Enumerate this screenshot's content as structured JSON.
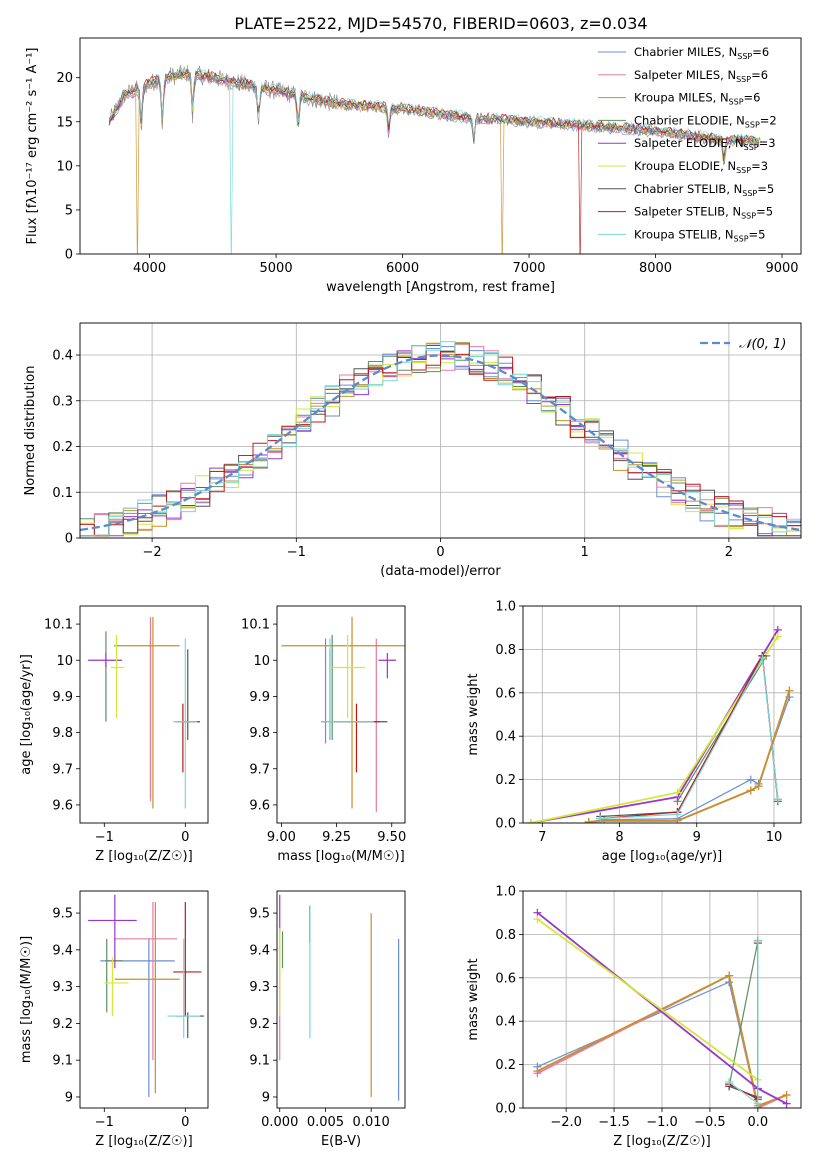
{
  "figure_title": "PLATE=2522, MJD=54570, FIBERID=0603, z=0.034",
  "series_styles": [
    {
      "name": "Chabrier MILES",
      "nssp": "6",
      "color": "#6a8fd6"
    },
    {
      "name": "Salpeter MILES",
      "nssp": "6",
      "color": "#e87ba6"
    },
    {
      "name": "Kroupa MILES",
      "nssp": "6",
      "color": "#c8902a"
    },
    {
      "name": "Chabrier ELODIE",
      "nssp": "2",
      "color": "#5e8f60"
    },
    {
      "name": "Salpeter ELODIE",
      "nssp": "3",
      "color": "#9a36c8"
    },
    {
      "name": "Kroupa ELODIE",
      "nssp": "3",
      "color": "#d4e838"
    },
    {
      "name": "Chabrier STELIB",
      "nssp": "5",
      "color": "#555555"
    },
    {
      "name": "Salpeter STELIB",
      "nssp": "5",
      "color": "#c01818"
    },
    {
      "name": "Kroupa STELIB",
      "nssp": "5",
      "color": "#78d8d8"
    }
  ],
  "legend_nssp_prefix": "N",
  "legend_nssp_sub": "SSP",
  "chart_data": [
    {
      "id": "spectrum",
      "type": "line",
      "title": "PLATE=2522, MJD=54570, FIBERID=0603, z=0.034",
      "xlabel": "wavelength [Angstrom, rest frame]",
      "ylabel": "Flux [fλ10⁻¹⁷ erg cm⁻² s⁻¹ A⁻¹]",
      "xlim": [
        3450,
        9150
      ],
      "ylim": [
        0,
        24.5
      ],
      "xticks": [
        4000,
        5000,
        6000,
        7000,
        8000,
        9000
      ],
      "yticks": [
        0,
        5,
        10,
        15,
        20
      ],
      "legend_position": "top-right",
      "continuum": {
        "x": [
          3680,
          3800,
          3950,
          4100,
          4300,
          4500,
          5000,
          5500,
          6000,
          6500,
          7000,
          7500,
          8000,
          8500,
          8830
        ],
        "y": [
          15,
          18,
          19,
          20,
          20.5,
          20,
          18.5,
          17,
          16.5,
          15.5,
          15,
          14.5,
          14,
          13,
          12.8
        ]
      },
      "absorption_features": [
        {
          "x": 3934,
          "depth": 5
        },
        {
          "x": 4101,
          "depth": 6
        },
        {
          "x": 4340,
          "depth": 5
        },
        {
          "x": 4861,
          "depth": 4
        },
        {
          "x": 5175,
          "depth": 4
        },
        {
          "x": 5890,
          "depth": 3
        },
        {
          "x": 6563,
          "depth": 3
        },
        {
          "x": 8542,
          "depth": 3
        }
      ],
      "model_dropouts": [
        {
          "series": "Kroupa MILES",
          "x": 3905
        },
        {
          "series": "Kroupa STELIB",
          "x": 4640
        },
        {
          "series": "Kroupa MILES",
          "x": 6785
        },
        {
          "series": "Salpeter STELIB",
          "x": 7410
        }
      ]
    },
    {
      "id": "residuals",
      "type": "line",
      "xlabel": "(data-model)/error",
      "ylabel": "Normed distribution",
      "xlim": [
        -2.5,
        2.5
      ],
      "ylim": [
        0,
        0.47
      ],
      "xticks": [
        -2,
        -1,
        0,
        1,
        2
      ],
      "yticks": [
        0.0,
        0.1,
        0.2,
        0.3,
        0.4
      ],
      "grid": true,
      "legend_position": "top-right",
      "reference_label": "𝒩(0, 1)",
      "reference_color": "#5a8ad0",
      "bin_width": 0.1
    },
    {
      "id": "age_vs_z",
      "type": "scatter",
      "xlabel": "Z [log₁₀(Z/Z☉)]",
      "ylabel": "age  [log₁₀(age/yr)]",
      "xlim": [
        -1.3,
        0.28
      ],
      "ylim": [
        9.55,
        10.15
      ],
      "xticks": [
        -1,
        0
      ],
      "yticks": [
        9.6,
        9.7,
        9.8,
        9.9,
        10.0,
        10.1
      ],
      "points": [
        {
          "series": "Chabrier MILES",
          "x": -0.43,
          "y": 9.84,
          "xerr": 0,
          "yerr": [
            0.22,
            0.22
          ]
        },
        {
          "series": "Salpeter MILES",
          "x": -0.43,
          "y": 10.04,
          "xerr": [
            0.02,
            0.02
          ],
          "yerr": [
            0.43,
            0.08
          ]
        },
        {
          "series": "Kroupa MILES",
          "x": -0.4,
          "y": 10.04,
          "xerr": [
            0.48,
            0.33
          ],
          "yerr": [
            0.45,
            0.08
          ]
        },
        {
          "series": "Chabrier ELODIE",
          "x": -0.98,
          "y": 9.95,
          "xerr": 0,
          "yerr": [
            0.12,
            0.13
          ]
        },
        {
          "series": "Salpeter ELODIE",
          "x": -0.98,
          "y": 10.0,
          "xerr": [
            0.22,
            0.2
          ],
          "yerr": [
            0.02,
            0.02
          ]
        },
        {
          "series": "Kroupa ELODIE",
          "x": -0.85,
          "y": 9.98,
          "xerr": [
            0.07,
            0.1
          ],
          "yerr": [
            0.14,
            0.09
          ]
        },
        {
          "series": "Chabrier STELIB",
          "x": 0.03,
          "y": 9.83,
          "xerr": [
            0.15,
            0.15
          ],
          "yerr": [
            0.05,
            0.2
          ]
        },
        {
          "series": "Salpeter STELIB",
          "x": -0.03,
          "y": 9.83,
          "xerr": [
            0.02,
            0.2
          ],
          "yerr": [
            0.14,
            0.05
          ]
        },
        {
          "series": "Kroupa STELIB",
          "x": 0.0,
          "y": 9.83,
          "xerr": [
            0.15,
            0.15
          ],
          "yerr": [
            0.24,
            0.23
          ]
        }
      ]
    },
    {
      "id": "age_vs_mass",
      "type": "scatter",
      "xlabel": "mass [log₁₀(M/M☉)]",
      "ylabel": "",
      "xlim": [
        8.98,
        9.56
      ],
      "ylim": [
        9.55,
        10.15
      ],
      "xticks": [
        9.0,
        9.25,
        9.5
      ],
      "xticklabels": [
        "9.00",
        "9.25",
        "9.50"
      ],
      "yticks": [
        9.6,
        9.7,
        9.8,
        9.9,
        10.0,
        10.1
      ],
      "points": [
        {
          "series": "Chabrier MILES",
          "x": 9.2,
          "y": 9.84,
          "xerr": 0,
          "yerr": [
            0.07,
            0.22
          ]
        },
        {
          "series": "Salpeter MILES",
          "x": 9.43,
          "y": 9.84,
          "xerr": 0,
          "yerr": [
            0.26,
            0.22
          ]
        },
        {
          "series": "Kroupa MILES",
          "x": 9.32,
          "y": 10.04,
          "xerr": [
            0.32,
            0.25
          ],
          "yerr": [
            0.45,
            0.08
          ]
        },
        {
          "series": "Chabrier ELODIE",
          "x": 9.23,
          "y": 9.94,
          "xerr": 0,
          "yerr": [
            0.16,
            0.13
          ]
        },
        {
          "series": "Salpeter ELODIE",
          "x": 9.48,
          "y": 10.0,
          "xerr": [
            0.04,
            0.04
          ],
          "yerr": [
            0.05,
            0.02
          ]
        },
        {
          "series": "Kroupa ELODIE",
          "x": 9.3,
          "y": 9.98,
          "xerr": [
            0.07,
            0.08
          ],
          "yerr": [
            0.14,
            0.09
          ]
        },
        {
          "series": "Chabrier STELIB",
          "x": 9.22,
          "y": 9.83,
          "xerr": [
            0.04,
            0.26
          ],
          "yerr": [
            0.05,
            0.2
          ]
        },
        {
          "series": "Salpeter STELIB",
          "x": 9.34,
          "y": 9.83,
          "xerr": [
            0.1,
            0.1
          ],
          "yerr": [
            0.14,
            0.05
          ]
        },
        {
          "series": "Kroupa STELIB",
          "x": 9.22,
          "y": 9.83,
          "xerr": [
            0.04,
            0.2
          ],
          "yerr": [
            0.05,
            0.23
          ]
        }
      ]
    },
    {
      "id": "weight_vs_age",
      "type": "line",
      "xlabel": "age  [log₁₀(age/yr)]",
      "ylabel": "mass weight",
      "xlim": [
        6.75,
        10.35
      ],
      "ylim": [
        0,
        1.0
      ],
      "xticks": [
        7,
        8,
        9,
        10
      ],
      "yticks": [
        0.0,
        0.2,
        0.4,
        0.6,
        0.8,
        1.0
      ],
      "yticklabels": [
        "0.0",
        "0.2",
        "0.4",
        "0.6",
        "0.8",
        "1.0"
      ],
      "grid": true,
      "series": [
        {
          "name": "Chabrier MILES",
          "x": [
            7.6,
            7.8,
            8.75,
            9.7,
            9.8,
            10.2
          ],
          "y": [
            0.005,
            0.015,
            0.02,
            0.2,
            0.18,
            0.58
          ]
        },
        {
          "name": "Salpeter MILES",
          "x": [
            7.6,
            7.8,
            8.75,
            9.7,
            9.8,
            10.2
          ],
          "y": [
            0.005,
            0.01,
            0.01,
            0.15,
            0.17,
            0.61
          ]
        },
        {
          "name": "Kroupa MILES",
          "x": [
            7.6,
            7.8,
            8.75,
            9.7,
            9.8,
            10.2
          ],
          "y": [
            0.005,
            0.01,
            0.01,
            0.15,
            0.17,
            0.61
          ]
        },
        {
          "name": "Chabrier ELODIE",
          "x": [
            8.75,
            9.9
          ],
          "y": [
            0.1,
            0.77
          ]
        },
        {
          "name": "Salpeter ELODIE",
          "x": [
            6.85,
            8.75,
            10.05
          ],
          "y": [
            0.0,
            0.12,
            0.89
          ]
        },
        {
          "name": "Kroupa ELODIE",
          "x": [
            6.85,
            8.75,
            10.05
          ],
          "y": [
            0.0,
            0.14,
            0.86
          ]
        },
        {
          "name": "Chabrier STELIB",
          "x": [
            7.75,
            8.75,
            9.85,
            10.05
          ],
          "y": [
            0.03,
            0.05,
            0.77,
            0.1
          ]
        },
        {
          "name": "Salpeter STELIB",
          "x": [
            7.75,
            8.75,
            9.85,
            10.05
          ],
          "y": [
            0.02,
            0.05,
            0.77,
            0.11
          ]
        },
        {
          "name": "Kroupa STELIB",
          "x": [
            7.75,
            8.75,
            9.85,
            10.05
          ],
          "y": [
            0.02,
            0.04,
            0.76,
            0.11
          ]
        }
      ]
    },
    {
      "id": "mass_vs_z",
      "type": "scatter",
      "xlabel": "Z [log₁₀(Z/Z☉)]",
      "ylabel": "mass [log₁₀(M/M☉)]",
      "xlim": [
        -1.3,
        0.28
      ],
      "ylim": [
        8.97,
        9.56
      ],
      "xticks": [
        -1,
        0
      ],
      "yticks": [
        9.0,
        9.1,
        9.2,
        9.3,
        9.4,
        9.5
      ],
      "points": [
        {
          "series": "Chabrier MILES",
          "x": -0.45,
          "y": 9.37,
          "xerr": [
            0.6,
            0.32
          ],
          "yerr": [
            0.37,
            0.06
          ]
        },
        {
          "series": "Salpeter MILES",
          "x": -0.4,
          "y": 9.43,
          "xerr": [
            0.48,
            0.3
          ],
          "yerr": [
            0.33,
            0.1
          ]
        },
        {
          "series": "Kroupa MILES",
          "x": -0.37,
          "y": 9.32,
          "xerr": [
            0.5,
            0.3
          ],
          "yerr": [
            0.31,
            0.21
          ]
        },
        {
          "series": "Chabrier ELODIE",
          "x": -0.97,
          "y": 9.37,
          "xerr": [
            0.02,
            0.2
          ],
          "yerr": [
            0.14,
            0.06
          ]
        },
        {
          "series": "Salpeter ELODIE",
          "x": -0.87,
          "y": 9.48,
          "xerr": [
            0.33,
            0.27
          ],
          "yerr": [
            0.13,
            0.07
          ]
        },
        {
          "series": "Kroupa ELODIE",
          "x": -0.9,
          "y": 9.31,
          "xerr": [
            0.1,
            0.2
          ],
          "yerr": [
            0.09,
            0.07
          ]
        },
        {
          "series": "Chabrier STELIB",
          "x": 0.03,
          "y": 9.22,
          "xerr": [
            0.15,
            0.2
          ],
          "yerr": [
            0.06,
            0.01
          ]
        },
        {
          "series": "Salpeter STELIB",
          "x": 0.0,
          "y": 9.34,
          "xerr": [
            0.15,
            0.2
          ],
          "yerr": [
            0.12,
            0.19
          ]
        },
        {
          "series": "Kroupa STELIB",
          "x": -0.02,
          "y": 9.22,
          "xerr": [
            0.2,
            0.2
          ],
          "yerr": [
            0.06,
            0.21
          ]
        }
      ]
    },
    {
      "id": "mass_vs_ebv",
      "type": "scatter",
      "xlabel": "E(B-V)",
      "ylabel": "",
      "xlim": [
        -0.0003,
        0.0137
      ],
      "ylim": [
        8.97,
        9.56
      ],
      "xticks": [
        0.0,
        0.005,
        0.01
      ],
      "xticklabels": [
        "0.000",
        "0.005",
        "0.010"
      ],
      "yticks": [
        9.0,
        9.1,
        9.2,
        9.3,
        9.4,
        9.5
      ],
      "points": [
        {
          "series": "Chabrier MILES",
          "x": 0.013,
          "y": 9.23,
          "xerr": 0,
          "yerr": [
            0.24,
            0.2
          ]
        },
        {
          "series": "Salpeter MILES",
          "x": 0.0,
          "y": 9.22,
          "xerr": 0,
          "yerr": [
            0.12,
            0.23
          ]
        },
        {
          "series": "Kroupa MILES",
          "x": 0.01,
          "y": 9.25,
          "xerr": 0,
          "yerr": [
            0.25,
            0.25
          ]
        },
        {
          "series": "Chabrier ELODIE",
          "x": 0.0003,
          "y": 9.4,
          "xerr": 0,
          "yerr": [
            0.05,
            0.05
          ]
        },
        {
          "series": "Salpeter ELODIE",
          "x": 0.0,
          "y": 9.5,
          "xerr": 0,
          "yerr": [
            0.05,
            0.05
          ]
        },
        {
          "series": "Kroupa ELODIE",
          "x": 0.0,
          "y": 9.38,
          "xerr": 0,
          "yerr": [
            0.16,
            0.08
          ]
        },
        {
          "series": "Chabrier STELIB",
          "x": 0.0033,
          "y": 9.48,
          "xerr": 0,
          "yerr": [
            0.06,
            0.04
          ]
        },
        {
          "series": "Salpeter STELIB",
          "x": 0.0033,
          "y": 9.48,
          "xerr": 0,
          "yerr": [
            0.06,
            0.04
          ]
        },
        {
          "series": "Kroupa STELIB",
          "x": 0.0033,
          "y": 9.4,
          "xerr": 0,
          "yerr": [
            0.24,
            0.12
          ]
        }
      ]
    },
    {
      "id": "weight_vs_z",
      "type": "line",
      "xlabel": "Z [log₁₀(Z/Z☉)]",
      "ylabel": "mass weight",
      "xlim": [
        -2.45,
        0.45
      ],
      "ylim": [
        0,
        1.0
      ],
      "xticks": [
        -2.0,
        -1.5,
        -1.0,
        -0.5,
        0.0
      ],
      "xticklabels": [
        "−2.0",
        "−1.5",
        "−1.0",
        "−0.5",
        "0.0"
      ],
      "yticks": [
        0.0,
        0.2,
        0.4,
        0.6,
        0.8,
        1.0
      ],
      "yticklabels": [
        "0.0",
        "0.2",
        "0.4",
        "0.6",
        "0.8",
        "1.0"
      ],
      "grid": true,
      "series": [
        {
          "name": "Chabrier MILES",
          "x": [
            -2.3,
            -0.3,
            0.0
          ],
          "y": [
            0.19,
            0.58,
            0.0
          ]
        },
        {
          "name": "Salpeter MILES",
          "x": [
            -2.3,
            -0.3,
            0.0,
            0.3
          ],
          "y": [
            0.16,
            0.61,
            0.0,
            0.06
          ]
        },
        {
          "name": "Kroupa MILES",
          "x": [
            -2.3,
            -0.3,
            0.0,
            0.3
          ],
          "y": [
            0.17,
            0.61,
            0.01,
            0.06
          ]
        },
        {
          "name": "Chabrier ELODIE",
          "x": [
            -0.3,
            0.0
          ],
          "y": [
            0.1,
            0.77
          ]
        },
        {
          "name": "Salpeter ELODIE",
          "x": [
            -2.3,
            0.0,
            0.3
          ],
          "y": [
            0.9,
            0.09,
            0.02
          ]
        },
        {
          "name": "Kroupa ELODIE",
          "x": [
            -2.3,
            0.0
          ],
          "y": [
            0.87,
            0.13
          ]
        },
        {
          "name": "Chabrier STELIB",
          "x": [
            -0.3,
            0.0,
            0.0
          ],
          "y": [
            0.1,
            0.05,
            0.77
          ]
        },
        {
          "name": "Salpeter STELIB",
          "x": [
            -0.3,
            0.0,
            0.0
          ],
          "y": [
            0.11,
            0.04,
            0.76
          ]
        },
        {
          "name": "Kroupa STELIB",
          "x": [
            -0.3,
            0.0,
            0.0
          ],
          "y": [
            0.12,
            0.02,
            0.77
          ]
        }
      ]
    }
  ]
}
